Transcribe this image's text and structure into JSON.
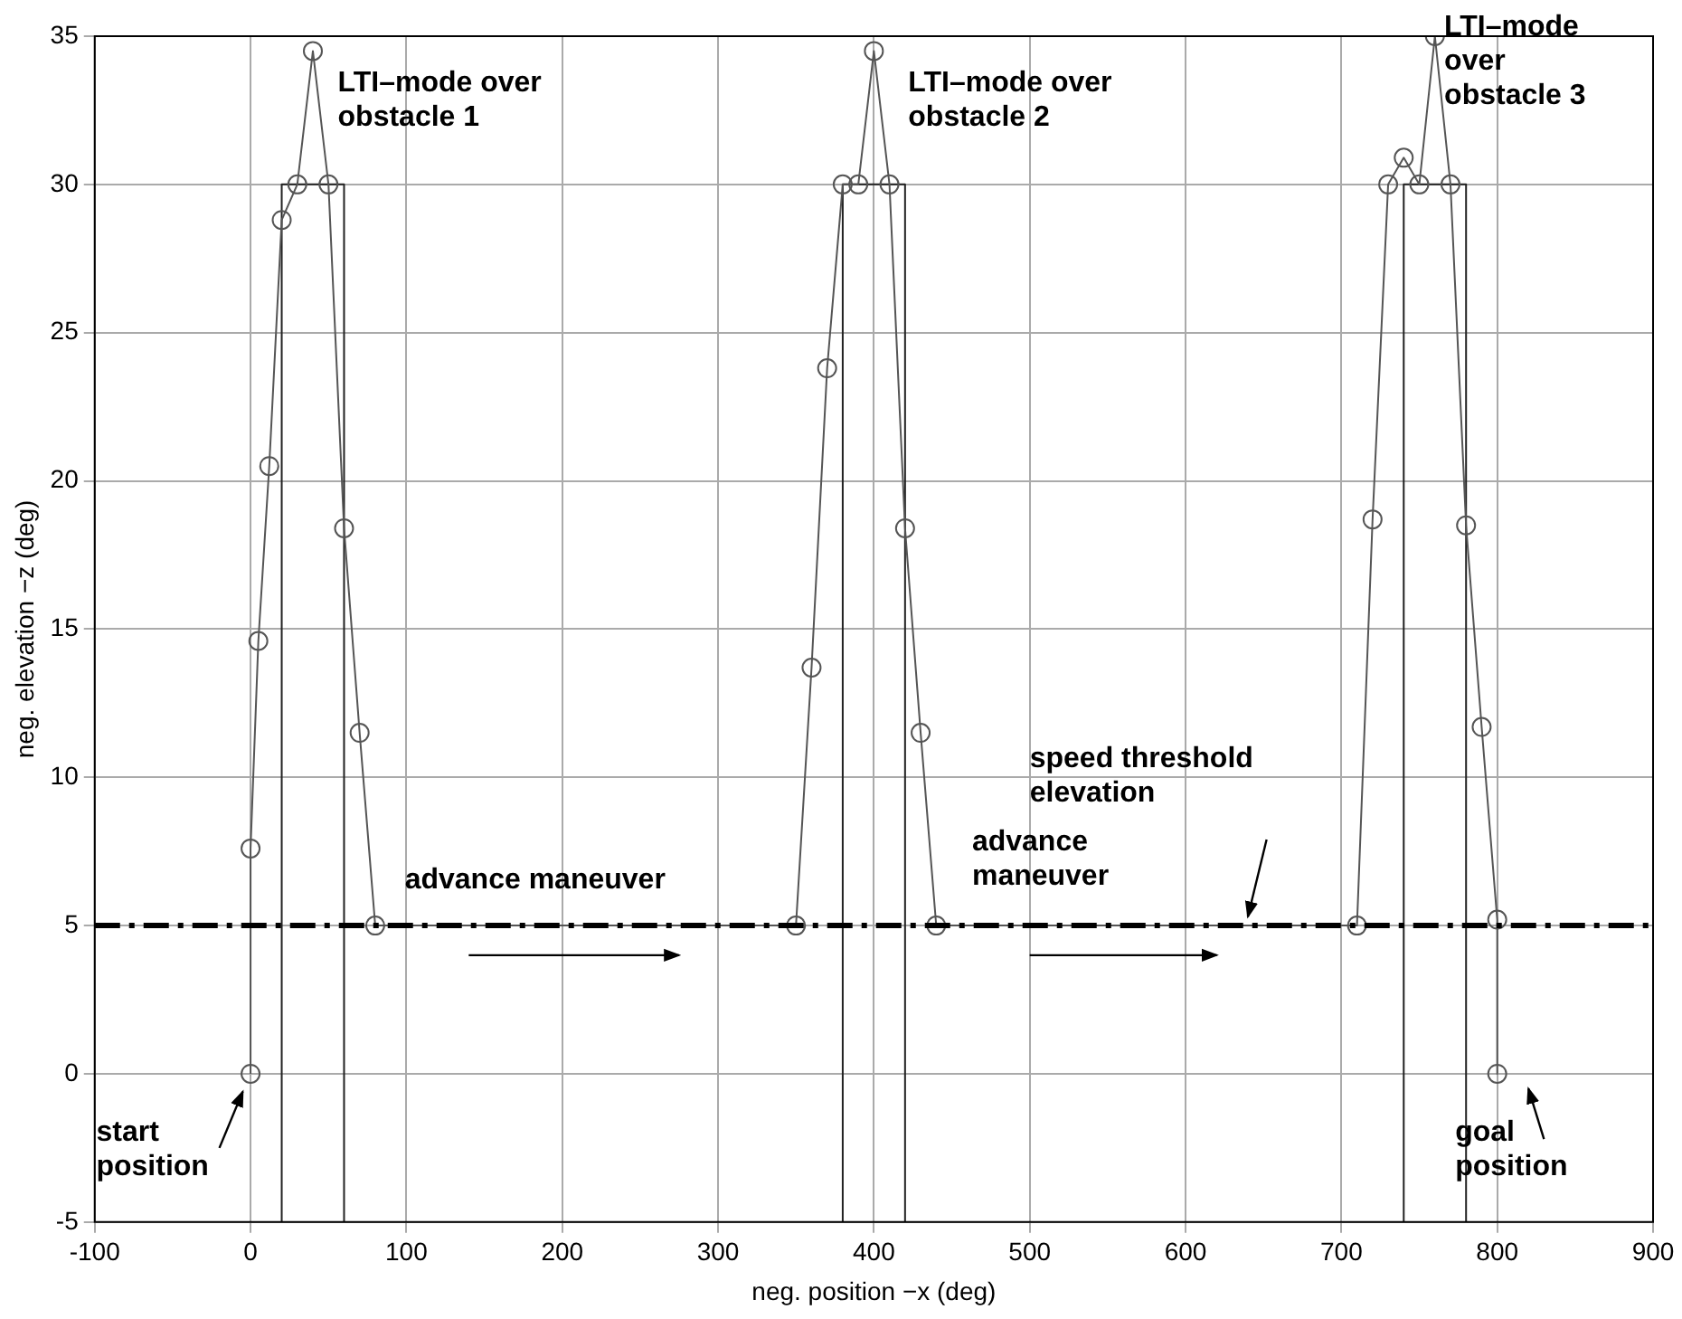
{
  "chart_data": {
    "type": "line",
    "xlabel": "neg. position −x (deg)",
    "ylabel": "neg. elevation −z (deg)",
    "xlim": [
      -100,
      900
    ],
    "xticks": [
      -100,
      0,
      100,
      200,
      300,
      400,
      500,
      600,
      700,
      800,
      900
    ],
    "ylim": [
      -5,
      35
    ],
    "yticks": [
      -5,
      0,
      5,
      10,
      15,
      20,
      25,
      30,
      35
    ],
    "grid": true,
    "legend": false,
    "series": [
      {
        "color": "#555555",
        "marker": "circle",
        "x": [
          0,
          0,
          5,
          12,
          20,
          30,
          40,
          50,
          60,
          70,
          80,
          350,
          360,
          370,
          380,
          390,
          400,
          410,
          420,
          430,
          440,
          710,
          720,
          730,
          740,
          750,
          760,
          770,
          780,
          790,
          800,
          800
        ],
        "values": [
          0,
          7.6,
          14.6,
          20.5,
          28.8,
          30,
          34.5,
          30,
          18.4,
          11.5,
          5,
          5,
          13.7,
          23.8,
          30,
          30,
          34.5,
          30,
          18.4,
          11.5,
          5,
          5,
          18.7,
          30,
          30.9,
          30,
          35,
          30,
          18.5,
          11.7,
          5.2,
          0
        ]
      },
      {
        "color": "#222222",
        "marker": "none",
        "x": [
          20,
          20,
          60,
          60
        ],
        "values": [
          -5,
          30,
          30,
          -5
        ]
      },
      {
        "color": "#222222",
        "marker": "none",
        "x": [
          380,
          380,
          420,
          420
        ],
        "values": [
          -5,
          30,
          30,
          -5
        ]
      },
      {
        "color": "#222222",
        "marker": "none",
        "x": [
          740,
          740,
          780,
          780
        ],
        "values": [
          -5,
          30,
          30,
          -5
        ]
      }
    ],
    "ref_lines": [
      {
        "axis": "y",
        "value": 5,
        "color": "#000000",
        "line_style": "dashed"
      }
    ],
    "annotations": [
      "LTI–mode over\nobstacle 1",
      "LTI–mode over\nobstacle 2",
      "LTI–mode\nover\nobstacle 3",
      "advance maneuver",
      "advance\nmaneuver",
      "speed threshold\nelevation",
      "start\nposition",
      "goal\nposition"
    ]
  }
}
